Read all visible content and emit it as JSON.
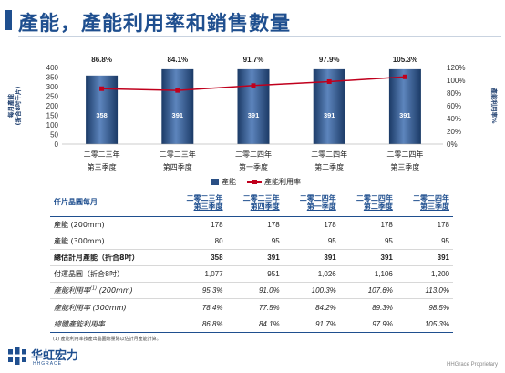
{
  "title": "產能，產能利用率和銷售數量",
  "chart_data": {
    "type": "bar",
    "categories": [
      [
        "二零二三年",
        "第三季度"
      ],
      [
        "二零二三年",
        "第四季度"
      ],
      [
        "二零二四年",
        "第一季度"
      ],
      [
        "二零二四年",
        "第二季度"
      ],
      [
        "二零二四年",
        "第三季度"
      ]
    ],
    "series": [
      {
        "name": "產能",
        "type": "bar",
        "axis": "left",
        "values": [
          358,
          391,
          391,
          391,
          391
        ],
        "color": "#2a4f84"
      },
      {
        "name": "產能利用率",
        "type": "line",
        "axis": "right",
        "values": [
          86.8,
          84.1,
          91.7,
          97.9,
          105.3
        ],
        "color": "#c0001d"
      }
    ],
    "top_labels": [
      "86.8%",
      "84.1%",
      "91.7%",
      "97.9%",
      "105.3%"
    ],
    "ylabel_left": [
      "每月產能",
      "(折合8吋千片)"
    ],
    "ylabel_right": "產能利用率%",
    "ylim_left": [
      0,
      400
    ],
    "yticks_left": [
      "0",
      "50",
      "100",
      "150",
      "200",
      "250",
      "300",
      "350",
      "400"
    ],
    "ylim_right": [
      0,
      120
    ],
    "yticks_right": [
      "0%",
      "20%",
      "40%",
      "60%",
      "80%",
      "100%",
      "120%"
    ],
    "legend_position": "bottom",
    "grid": false
  },
  "table": {
    "header_label": "仟片晶圓每月",
    "columns": [
      {
        "year": "二零二三年",
        "quarter": "第三季度"
      },
      {
        "year": "二零二三年",
        "quarter": "第四季度"
      },
      {
        "year": "二零二四年",
        "quarter": "第一季度"
      },
      {
        "year": "二零二四年",
        "quarter": "第二季度"
      },
      {
        "year": "二零二四年",
        "quarter": "第三季度"
      }
    ],
    "rows": [
      {
        "label": "產能 (200mm)",
        "values": [
          "178",
          "178",
          "178",
          "178",
          "178"
        ],
        "style": ""
      },
      {
        "label": "產能 (300mm)",
        "values": [
          "80",
          "95",
          "95",
          "95",
          "95"
        ],
        "style": ""
      },
      {
        "label": "總估計月產能（折合8吋）",
        "values": [
          "358",
          "391",
          "391",
          "391",
          "391"
        ],
        "style": "bold"
      },
      {
        "label": "付運晶圓（折合8吋）",
        "values": [
          "1,077",
          "951",
          "1,026",
          "1,106",
          "1,200"
        ],
        "style": ""
      },
      {
        "label": "產能利用率",
        "sup": "(1)",
        "label_suffix": " (200mm)",
        "values": [
          "95.3%",
          "91.0%",
          "100.3%",
          "107.6%",
          "113.0%"
        ],
        "style": "italic"
      },
      {
        "label": "產能利用率 (300mm)",
        "values": [
          "78.4%",
          "77.5%",
          "84.2%",
          "89.3%",
          "98.5%"
        ],
        "style": "italic"
      },
      {
        "label": "總體產能利用率",
        "values": [
          "86.8%",
          "84.1%",
          "91.7%",
          "97.9%",
          "105.3%"
        ],
        "style": "italic lastrow"
      }
    ]
  },
  "footnote": "(1) 產能利用率按產出晶圓總量除以估計月產能計算。",
  "logo": {
    "cn": "华虹宏力",
    "en": "HHGRACE",
    "color": "#1f4f8f"
  },
  "proprietary": "HHGrace Proprietary"
}
